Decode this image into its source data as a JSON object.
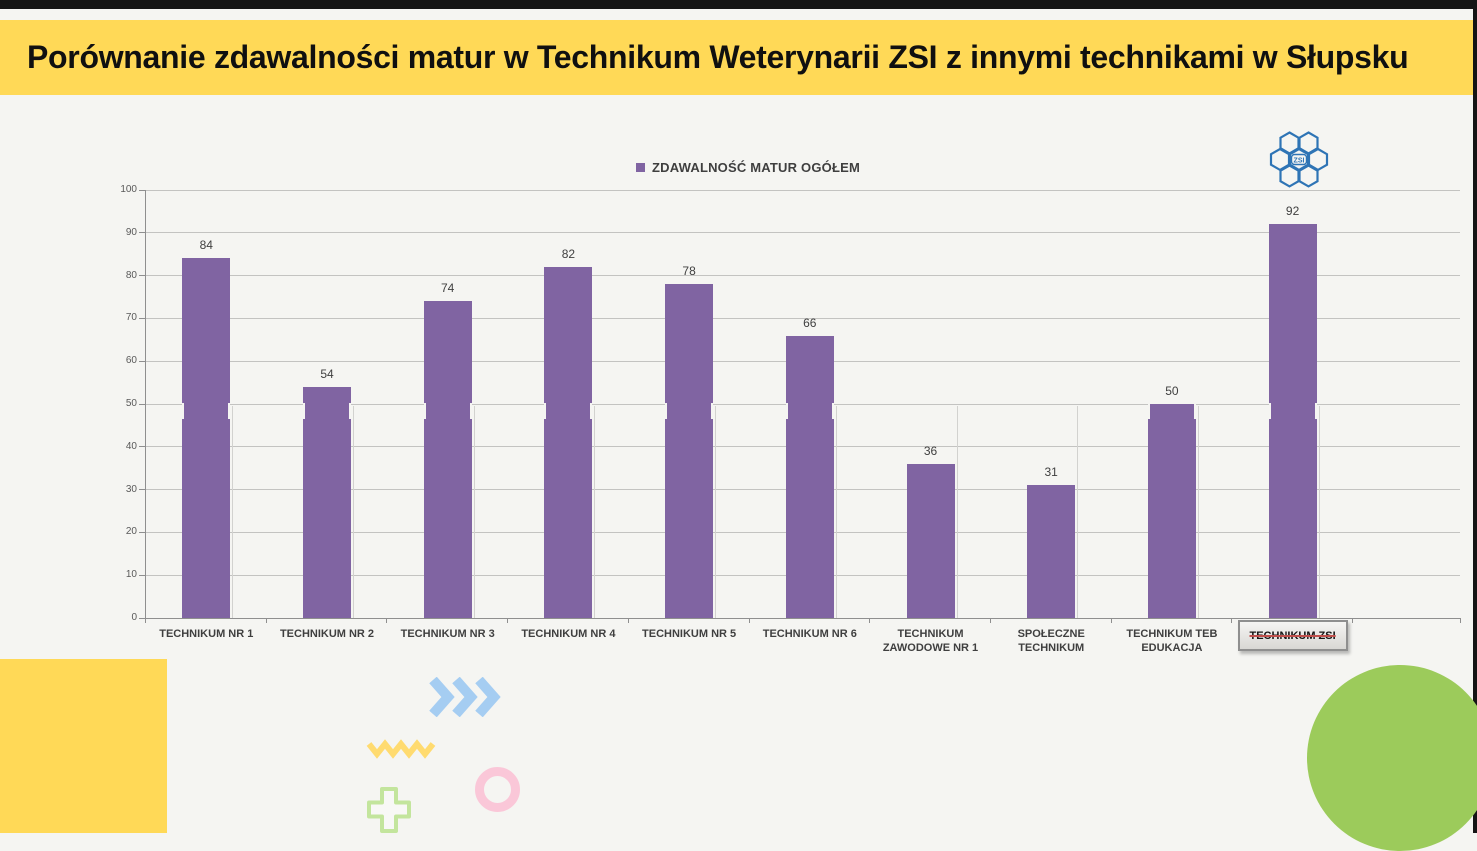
{
  "header": {
    "title": "Porównanie zdawalności matur w Technikum Weterynarii ZSI z innymi technikami w Słupsku",
    "background_color": "#ffd957"
  },
  "logo": {
    "label": "ZSI",
    "color": "#2e74b5"
  },
  "chart_data": {
    "type": "bar",
    "title": "",
    "legend": {
      "label": "ZDAWALNOŚĆ  MATUR OGÓŁEM",
      "position": "top",
      "swatch_color": "#8064a2"
    },
    "categories": [
      "TECHNIKUM NR 1",
      "TECHNIKUM NR 2",
      "TECHNIKUM NR 3",
      "TECHNIKUM NR 4",
      "TECHNIKUM NR 5",
      "TECHNIKUM NR 6",
      "TECHNIKUM ZAWODOWE NR 1",
      "SPOŁECZNE TECHNIKUM",
      "TECHNIKUM TEB EDUKACJA",
      "TECHNIKUM ZSI"
    ],
    "values": [
      84,
      54,
      74,
      82,
      78,
      66,
      36,
      31,
      50,
      92
    ],
    "bar_color": "#8064a2",
    "ylim": [
      0,
      100
    ],
    "yticks": [
      0,
      10,
      20,
      30,
      40,
      50,
      60,
      70,
      80,
      90,
      100
    ],
    "grid": true,
    "highlighted_category": "TECHNIKUM ZSI",
    "highlight_note": "gray beveled box with red strikethrough text"
  },
  "decorations": {
    "chevrons_color": "#a5cdf2",
    "zigzag_color": "#ffdb70",
    "ring_color": "#fac7d8",
    "plus_color": "#c3e59d",
    "green_circle_color": "#9ccb5b",
    "yellow_rect_color": "#ffd957",
    "frame_color": "#151515"
  }
}
